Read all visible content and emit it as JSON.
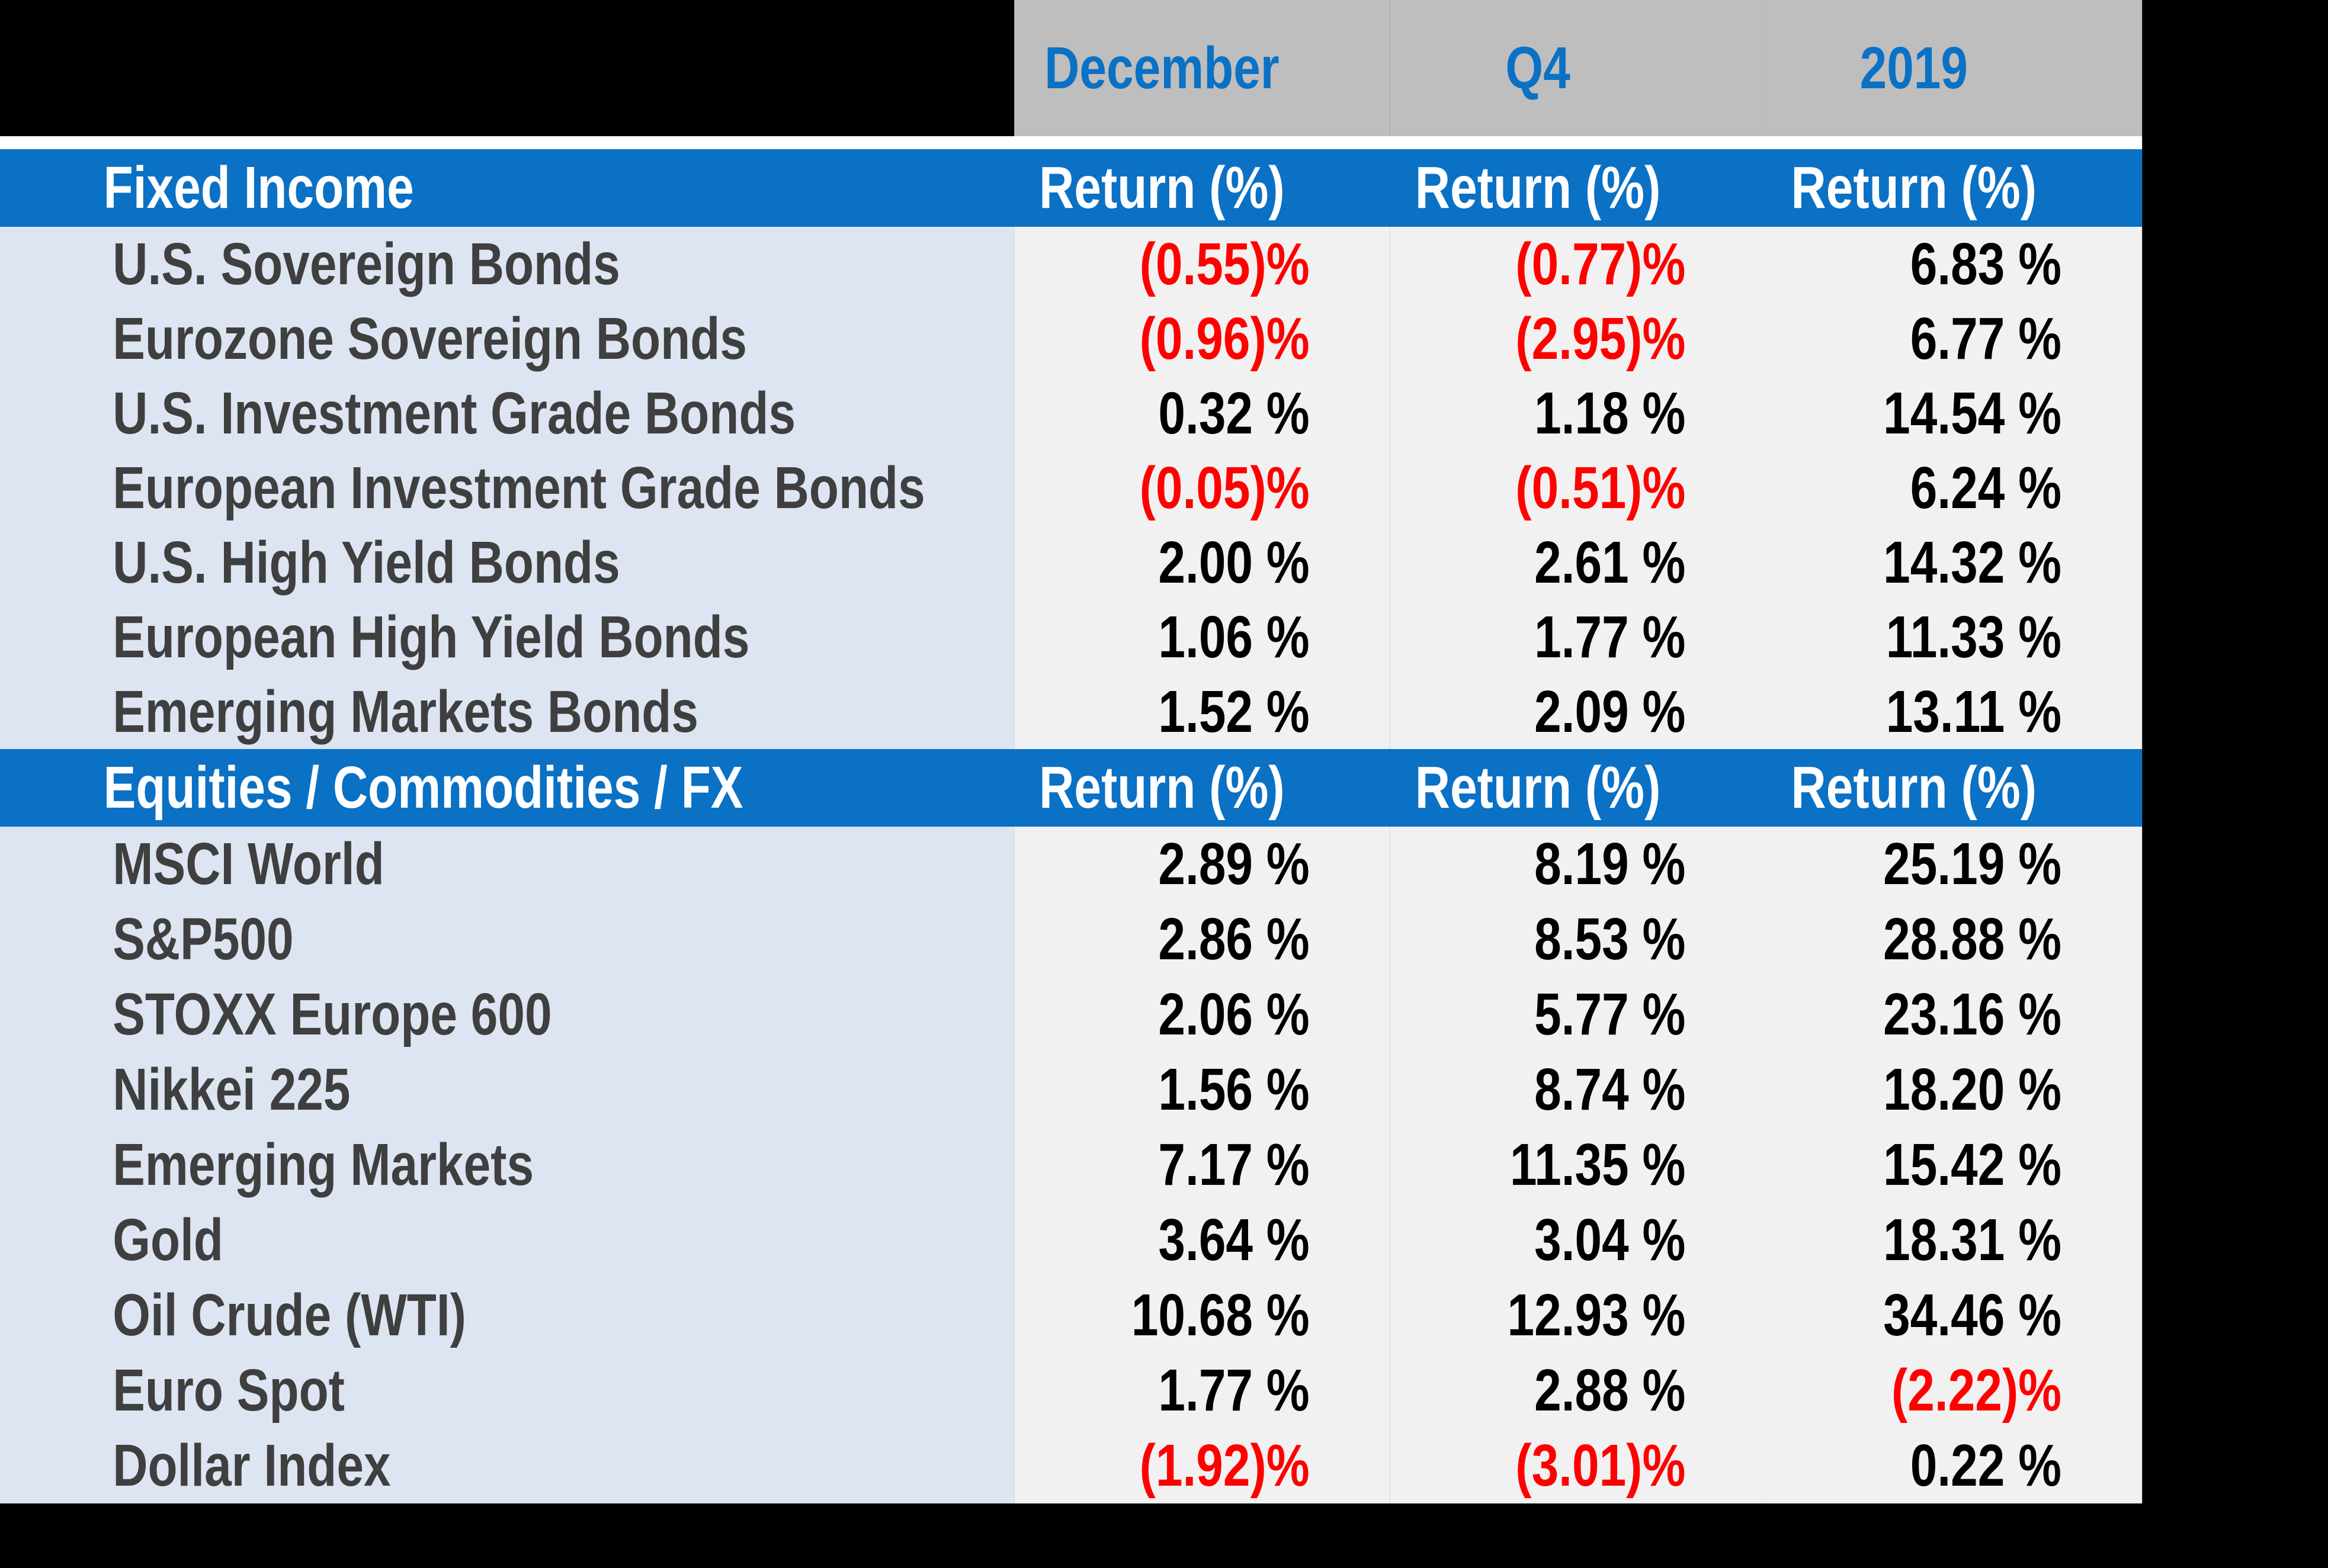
{
  "header": {
    "columns": [
      "December",
      "Q4",
      "2019"
    ]
  },
  "sections": [
    {
      "title": "Fixed Income",
      "return_headers": [
        "Return (%)",
        "Return (%)",
        "Return (%)"
      ],
      "rows": [
        {
          "label": "U.S. Sovereign Bonds",
          "values": [
            {
              "text": "(0.55)%",
              "negative": true
            },
            {
              "text": "(0.77)%",
              "negative": true
            },
            {
              "text": "6.83 %",
              "negative": false
            }
          ]
        },
        {
          "label": "Eurozone Sovereign Bonds",
          "values": [
            {
              "text": "(0.96)%",
              "negative": true
            },
            {
              "text": "(2.95)%",
              "negative": true
            },
            {
              "text": "6.77 %",
              "negative": false
            }
          ]
        },
        {
          "label": "U.S. Investment Grade Bonds",
          "values": [
            {
              "text": "0.32 %",
              "negative": false
            },
            {
              "text": "1.18 %",
              "negative": false
            },
            {
              "text": "14.54 %",
              "negative": false
            }
          ]
        },
        {
          "label": "European Investment Grade Bonds",
          "values": [
            {
              "text": "(0.05)%",
              "negative": true
            },
            {
              "text": "(0.51)%",
              "negative": true
            },
            {
              "text": "6.24 %",
              "negative": false
            }
          ]
        },
        {
          "label": "U.S. High Yield Bonds",
          "values": [
            {
              "text": "2.00 %",
              "negative": false
            },
            {
              "text": "2.61 %",
              "negative": false
            },
            {
              "text": "14.32 %",
              "negative": false
            }
          ]
        },
        {
          "label": "European High Yield Bonds",
          "values": [
            {
              "text": "1.06 %",
              "negative": false
            },
            {
              "text": "1.77 %",
              "negative": false
            },
            {
              "text": "11.33 %",
              "negative": false
            }
          ]
        },
        {
          "label": "Emerging Markets Bonds",
          "values": [
            {
              "text": "1.52 %",
              "negative": false
            },
            {
              "text": "2.09 %",
              "negative": false
            },
            {
              "text": "13.11 %",
              "negative": false
            }
          ]
        }
      ]
    },
    {
      "title": "Equities / Commodities / FX",
      "return_headers": [
        "Return (%)",
        "Return (%)",
        "Return (%)"
      ],
      "rows": [
        {
          "label": "MSCI World",
          "values": [
            {
              "text": "2.89 %",
              "negative": false
            },
            {
              "text": "8.19 %",
              "negative": false
            },
            {
              "text": "25.19 %",
              "negative": false
            }
          ]
        },
        {
          "label": "S&P500",
          "values": [
            {
              "text": "2.86 %",
              "negative": false
            },
            {
              "text": "8.53 %",
              "negative": false
            },
            {
              "text": "28.88 %",
              "negative": false
            }
          ]
        },
        {
          "label": "STOXX Europe 600",
          "values": [
            {
              "text": "2.06 %",
              "negative": false
            },
            {
              "text": "5.77 %",
              "negative": false
            },
            {
              "text": "23.16 %",
              "negative": false
            }
          ]
        },
        {
          "label": "Nikkei 225",
          "values": [
            {
              "text": "1.56 %",
              "negative": false
            },
            {
              "text": "8.74 %",
              "negative": false
            },
            {
              "text": "18.20 %",
              "negative": false
            }
          ]
        },
        {
          "label": "Emerging Markets",
          "values": [
            {
              "text": "7.17 %",
              "negative": false
            },
            {
              "text": "11.35 %",
              "negative": false
            },
            {
              "text": "15.42 %",
              "negative": false
            }
          ]
        },
        {
          "label": "Gold",
          "values": [
            {
              "text": "3.64 %",
              "negative": false
            },
            {
              "text": "3.04 %",
              "negative": false
            },
            {
              "text": "18.31 %",
              "negative": false
            }
          ]
        },
        {
          "label": "Oil Crude (WTI)",
          "values": [
            {
              "text": "10.68 %",
              "negative": false
            },
            {
              "text": "12.93 %",
              "negative": false
            },
            {
              "text": "34.46 %",
              "negative": false
            }
          ]
        },
        {
          "label": "Euro Spot",
          "values": [
            {
              "text": "1.77 %",
              "negative": false
            },
            {
              "text": "2.88 %",
              "negative": false
            },
            {
              "text": "(2.22)%",
              "negative": true
            }
          ]
        },
        {
          "label": "Dollar Index",
          "values": [
            {
              "text": "(1.92)%",
              "negative": true
            },
            {
              "text": "(3.01)%",
              "negative": true
            },
            {
              "text": "0.22 %",
              "negative": false
            }
          ]
        }
      ]
    }
  ],
  "colors": {
    "band_blue": "#0a71c5",
    "header_gray": "#bebebe",
    "header_text_blue": "#0a71c5",
    "label_column_bg": "#dce5f1",
    "data_column_bg": "#f1f1f1",
    "label_text": "#3f3f3f",
    "positive_value_text": "#000000",
    "negative_value_text": "#ff0000",
    "band_text": "#ffffff",
    "page_background": "#000000"
  },
  "chart_data": {
    "type": "table",
    "title": "Market returns by period",
    "period_columns": [
      "December",
      "Q4",
      "2019"
    ],
    "value_unit": "percent return",
    "negative_format": "parentheses, red",
    "sections": [
      {
        "name": "Fixed Income",
        "rows": [
          {
            "label": "U.S. Sovereign Bonds",
            "december": -0.55,
            "q4": -0.77,
            "y2019": 6.83
          },
          {
            "label": "Eurozone Sovereign Bonds",
            "december": -0.96,
            "q4": -2.95,
            "y2019": 6.77
          },
          {
            "label": "U.S. Investment Grade Bonds",
            "december": 0.32,
            "q4": 1.18,
            "y2019": 14.54
          },
          {
            "label": "European Investment Grade Bonds",
            "december": -0.05,
            "q4": -0.51,
            "y2019": 6.24
          },
          {
            "label": "U.S. High Yield Bonds",
            "december": 2.0,
            "q4": 2.61,
            "y2019": 14.32
          },
          {
            "label": "European High Yield Bonds",
            "december": 1.06,
            "q4": 1.77,
            "y2019": 11.33
          },
          {
            "label": "Emerging Markets Bonds",
            "december": 1.52,
            "q4": 2.09,
            "y2019": 13.11
          }
        ]
      },
      {
        "name": "Equities / Commodities / FX",
        "rows": [
          {
            "label": "MSCI World",
            "december": 2.89,
            "q4": 8.19,
            "y2019": 25.19
          },
          {
            "label": "S&P500",
            "december": 2.86,
            "q4": 8.53,
            "y2019": 28.88
          },
          {
            "label": "STOXX Europe 600",
            "december": 2.06,
            "q4": 5.77,
            "y2019": 23.16
          },
          {
            "label": "Nikkei 225",
            "december": 1.56,
            "q4": 8.74,
            "y2019": 18.2
          },
          {
            "label": "Emerging Markets",
            "december": 7.17,
            "q4": 11.35,
            "y2019": 15.42
          },
          {
            "label": "Gold",
            "december": 3.64,
            "q4": 3.04,
            "y2019": 18.31
          },
          {
            "label": "Oil Crude (WTI)",
            "december": 10.68,
            "q4": 12.93,
            "y2019": 34.46
          },
          {
            "label": "Euro Spot",
            "december": 1.77,
            "q4": 2.88,
            "y2019": -2.22
          },
          {
            "label": "Dollar Index",
            "december": -1.92,
            "q4": -3.01,
            "y2019": 0.22
          }
        ]
      }
    ]
  }
}
